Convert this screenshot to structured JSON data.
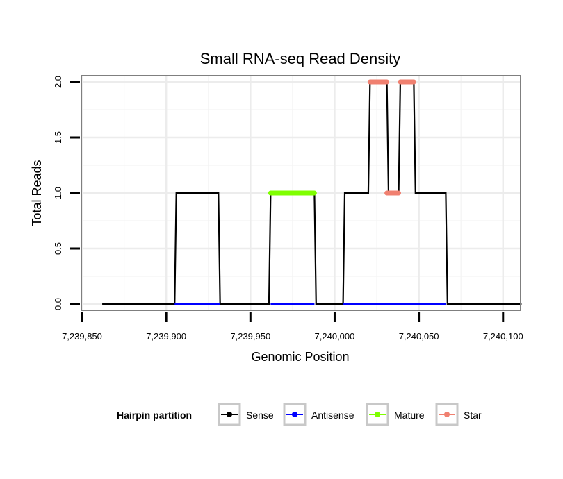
{
  "chart_data": {
    "type": "line",
    "title": "Small RNA-seq Read Density",
    "xlabel": "Genomic Position",
    "ylabel": "Total Reads",
    "xlim": [
      7239850,
      7240110
    ],
    "ylim": [
      -0.05,
      2.05
    ],
    "x_ticks": [
      7239850,
      7239900,
      7239950,
      7240000,
      7240050,
      7240100
    ],
    "x_tick_labels": [
      "7,239,850",
      "7,239,900",
      "7,239,950",
      "7,240,000",
      "7,240,050",
      "7,240,100"
    ],
    "y_ticks": [
      0,
      0.5,
      1,
      1.5,
      2
    ],
    "y_tick_labels": [
      "0.0",
      "0.5",
      "1.0",
      "1.5",
      "2.0"
    ],
    "grid": true,
    "legend": {
      "title": "Hairpin partition",
      "position": "bottom",
      "entries": [
        "Sense",
        "Antisense",
        "Mature",
        "Star"
      ]
    },
    "series": [
      {
        "name": "Sense",
        "color": "#000000",
        "segments": [
          [
            [
              7239862,
              0
            ],
            [
              7239905,
              0
            ],
            [
              7239906,
              1
            ],
            [
              7239931,
              1
            ],
            [
              7239932,
              0
            ],
            [
              7239961,
              0
            ],
            [
              7239962,
              1
            ],
            [
              7239988,
              1
            ],
            [
              7239989,
              0
            ],
            [
              7240005,
              0
            ],
            [
              7240006,
              1
            ],
            [
              7240020,
              1
            ],
            [
              7240021,
              2
            ],
            [
              7240031,
              2
            ],
            [
              7240032,
              1
            ],
            [
              7240038,
              1
            ],
            [
              7240039,
              2
            ],
            [
              7240047,
              2
            ],
            [
              7240048,
              1
            ],
            [
              7240066,
              1
            ],
            [
              7240067,
              0
            ],
            [
              7240111,
              0
            ]
          ]
        ]
      },
      {
        "name": "Antisense",
        "color": "#0000ff",
        "segments": [
          [
            [
              7239905,
              0
            ],
            [
              7239932,
              0
            ]
          ],
          [
            [
              7239962,
              0
            ],
            [
              7239988,
              0
            ]
          ],
          [
            [
              7240005,
              0
            ],
            [
              7240066,
              0
            ]
          ]
        ]
      },
      {
        "name": "Mature",
        "color": "#7fff00",
        "segments": [
          [
            [
              7239962,
              1
            ],
            [
              7239988,
              1
            ]
          ]
        ]
      },
      {
        "name": "Star",
        "color": "#f08070",
        "segments": [
          [
            [
              7240021,
              2
            ],
            [
              7240031,
              2
            ]
          ],
          [
            [
              7240031,
              1
            ],
            [
              7240038,
              1
            ]
          ],
          [
            [
              7240039,
              2
            ],
            [
              7240047,
              2
            ]
          ]
        ]
      }
    ]
  }
}
